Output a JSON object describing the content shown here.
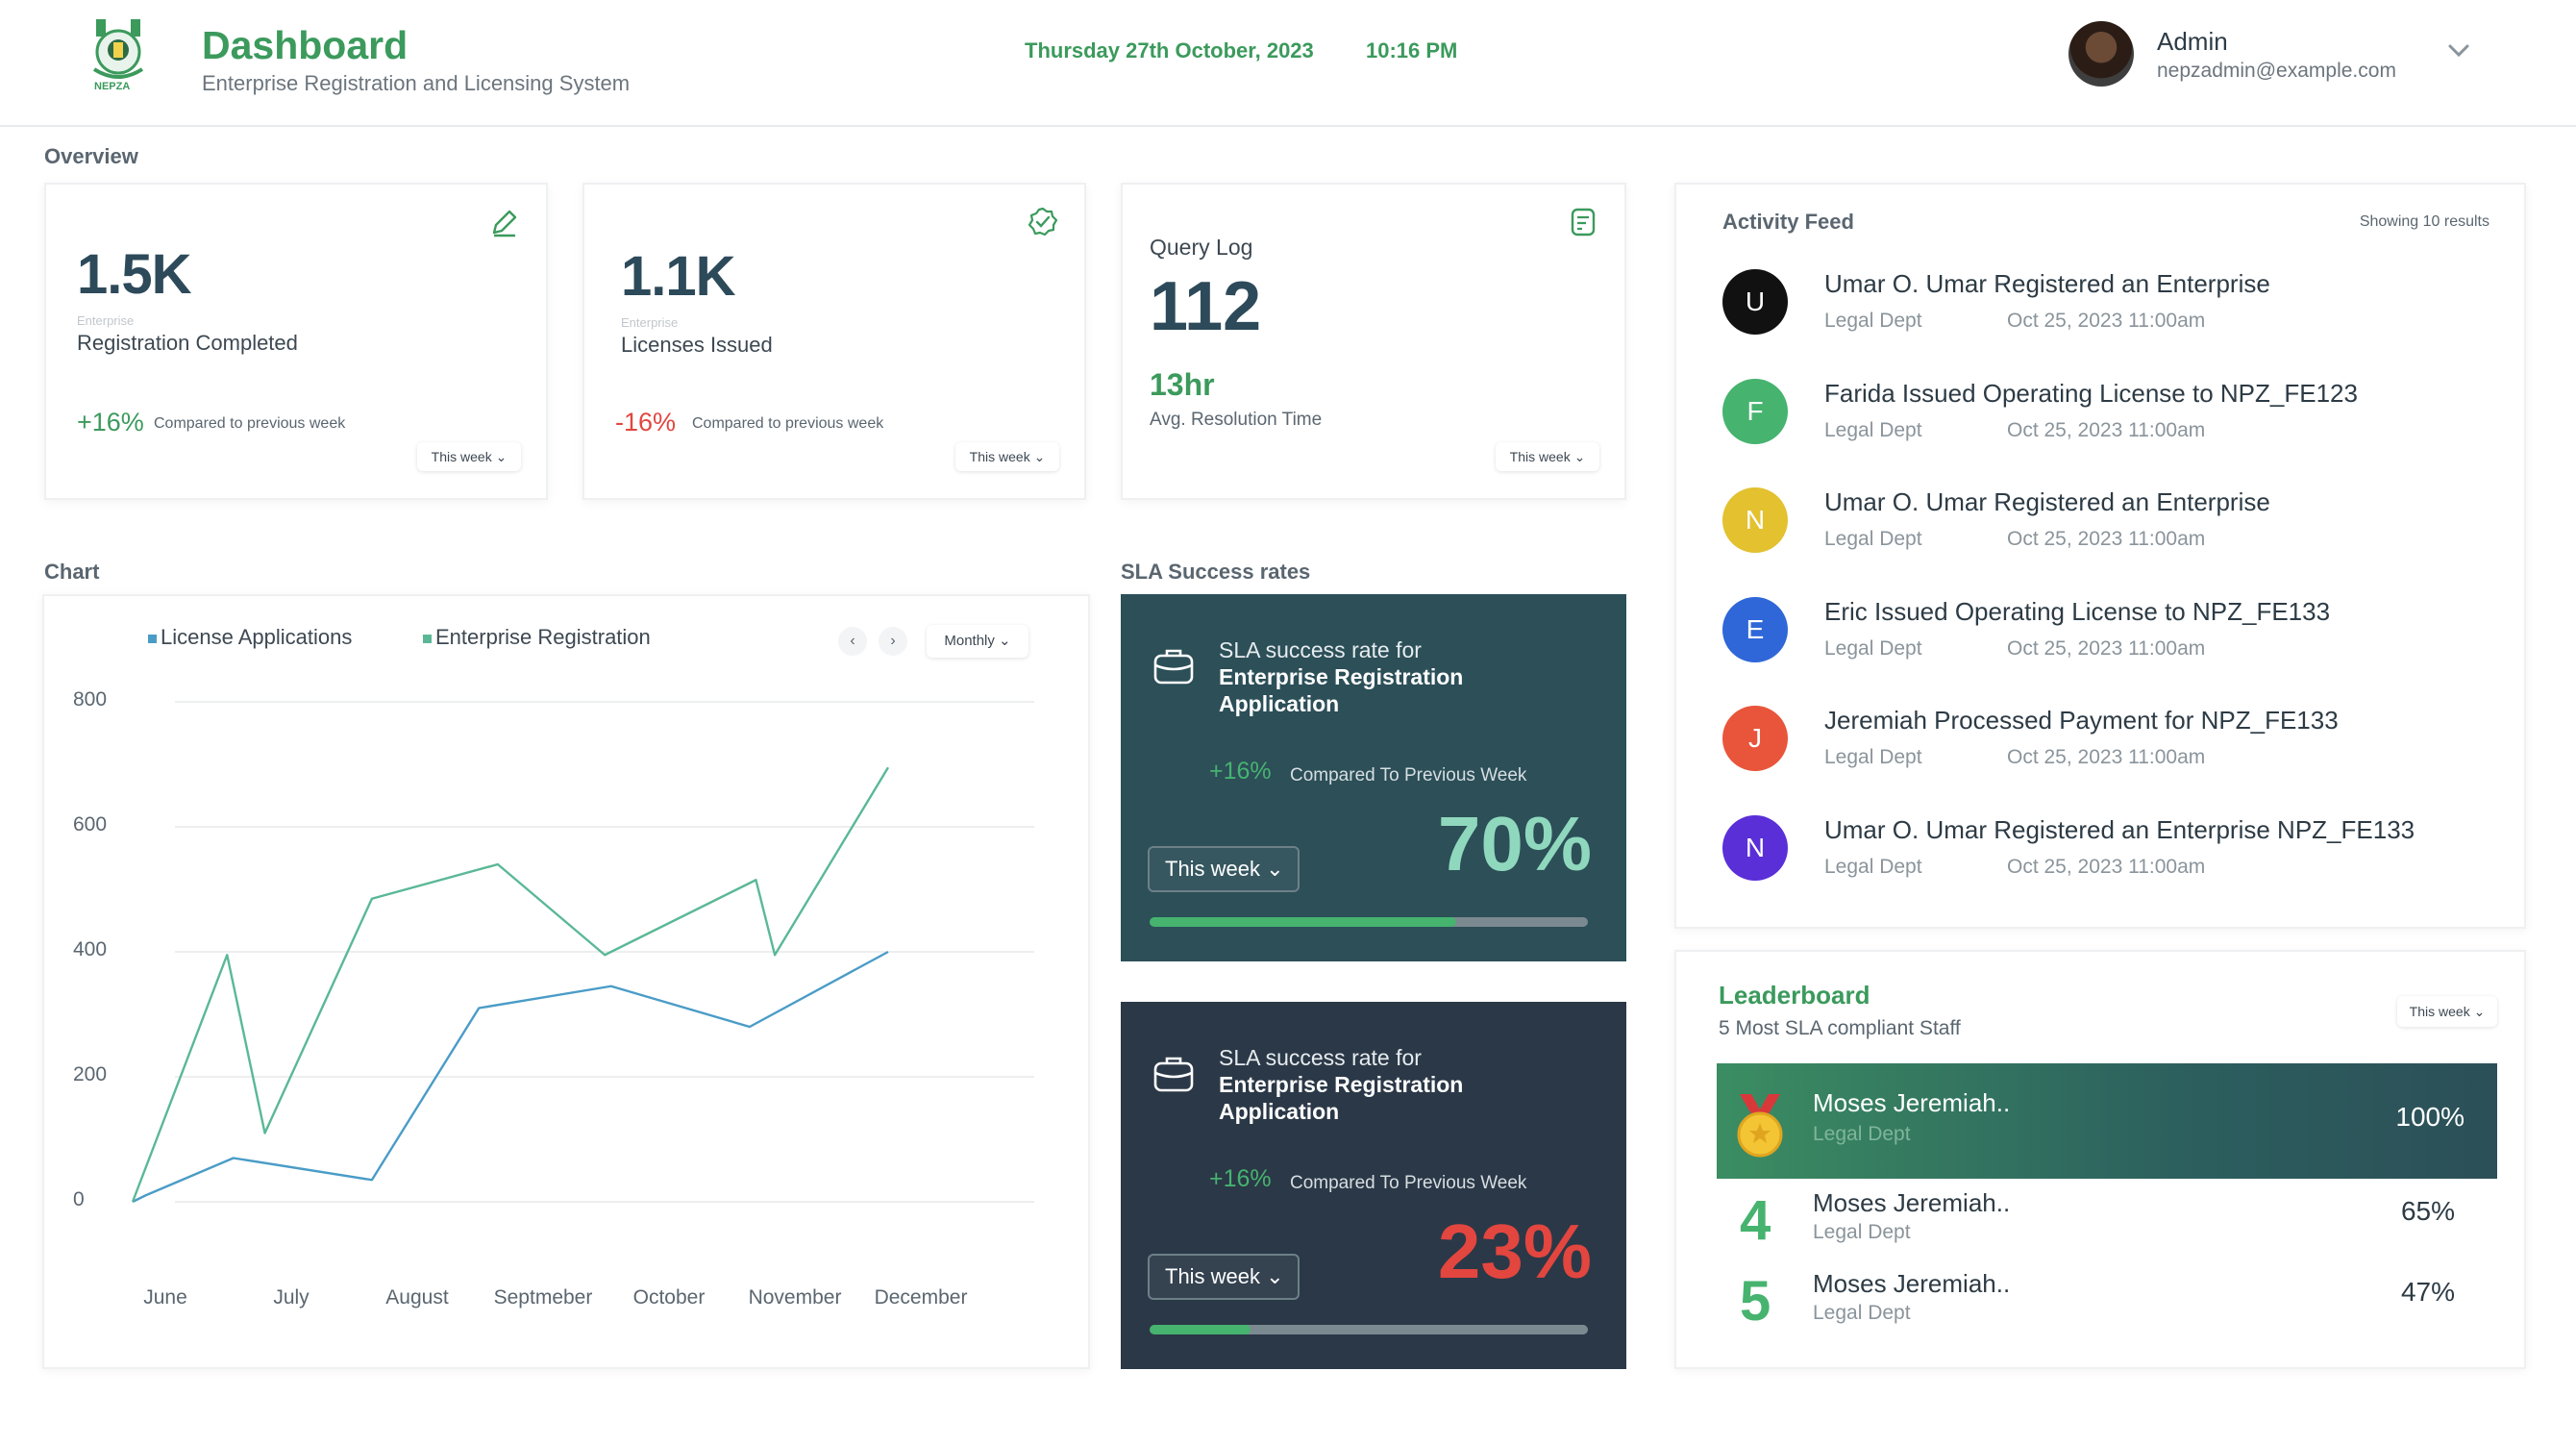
{
  "header": {
    "logo_text": "NEPZA",
    "title": "Dashboard",
    "subtitle": "Enterprise Registration and Licensing System",
    "date": "Thursday 27th October, 2023",
    "time": "10:16 PM",
    "user_name": "Admin",
    "user_email": "nepzadmin@example.com"
  },
  "overview": {
    "label": "Overview",
    "cards": [
      {
        "value": "1.5K",
        "tiny": "Enterprise",
        "label": "Registration Completed",
        "pct": "+16%",
        "pct_color": "#3b9a5c",
        "compare": "Compared to previous week",
        "period": "This week",
        "icon": "edit-icon"
      },
      {
        "value": "1.1K",
        "tiny": "Enterprise",
        "label": "Licenses Issued",
        "pct": "-16%",
        "pct_color": "#e2463f",
        "compare": "Compared to previous week",
        "period": "This week",
        "icon": "verified-badge-icon"
      }
    ],
    "query": {
      "label": "Query Log",
      "value": "112",
      "resolution": "13hr",
      "resolution_label": "Avg. Resolution Time",
      "period": "This week",
      "icon": "document-icon"
    }
  },
  "chart_section": {
    "label": "Chart",
    "legend": [
      {
        "name": "License Applications",
        "color": "#4a9cc7"
      },
      {
        "name": "Enterprise Registration",
        "color": "#5ab896"
      }
    ],
    "prev": "‹",
    "next": "›",
    "period": "Monthly"
  },
  "chart_data": {
    "type": "line",
    "x": [
      "June",
      "July",
      "August",
      "Septmeber",
      "October",
      "November",
      "December"
    ],
    "ylim": [
      0,
      800
    ],
    "yticks": [
      0,
      200,
      400,
      600,
      800
    ],
    "grid": true,
    "series": [
      {
        "name": "License Applications",
        "color": "#4a9cc7",
        "points": [
          [
            0.0,
            0
          ],
          [
            0.1,
            10
          ],
          [
            0.8,
            70
          ],
          [
            1.9,
            35
          ],
          [
            2.75,
            310
          ],
          [
            3.8,
            345
          ],
          [
            4.9,
            280
          ],
          [
            6.0,
            400
          ]
        ]
      },
      {
        "name": "Enterprise Registration",
        "color": "#5ab896",
        "points": [
          [
            0.0,
            0
          ],
          [
            0.75,
            395
          ],
          [
            1.05,
            110
          ],
          [
            1.9,
            485
          ],
          [
            2.9,
            540
          ],
          [
            3.75,
            395
          ],
          [
            4.95,
            515
          ],
          [
            5.1,
            395
          ],
          [
            6.0,
            695
          ]
        ]
      }
    ]
  },
  "sla": {
    "label": "SLA Success rates",
    "cards": [
      {
        "line1": "SLA success rate for",
        "line2": "Enterprise Registration",
        "line3": "Application",
        "pct": "+16%",
        "compare": "Compared To Previous Week",
        "period": "This week",
        "rate": "70%",
        "rate_value": 0.7,
        "rate_color": "#8fd8bd"
      },
      {
        "line1": "SLA success rate for",
        "line2": "Enterprise Registration",
        "line3": "Application",
        "pct": "+16%",
        "compare": "Compared To Previous Week",
        "period": "This week",
        "rate": "23%",
        "rate_value": 0.23,
        "rate_color": "#e2463f"
      }
    ]
  },
  "feed": {
    "title": "Activity Feed",
    "count": "Showing 10 results",
    "items": [
      {
        "initial": "U",
        "color": "#111111",
        "text": "Umar O. Umar  Registered an Enterprise",
        "dept": "Legal Dept",
        "time": "Oct 25, 2023  11:00am"
      },
      {
        "initial": "F",
        "color": "#46b36f",
        "text": "Farida Issued Operating License to  NPZ_FE123",
        "dept": "Legal Dept",
        "time": "Oct 25, 2023  11:00am"
      },
      {
        "initial": "N",
        "color": "#e3c12f",
        "text": "Umar O. Umar  Registered an Enterprise",
        "dept": "Legal Dept",
        "time": "Oct 25, 2023  11:00am"
      },
      {
        "initial": "E",
        "color": "#2f67d8",
        "text": "Eric Issued Operating License to   NPZ_FE133",
        "dept": "Legal Dept",
        "time": "Oct 25, 2023  11:00am"
      },
      {
        "initial": "J",
        "color": "#e9553b",
        "text": "Jeremiah Processed Payment for NPZ_FE133",
        "dept": "Legal Dept",
        "time": "Oct 25, 2023  11:00am"
      },
      {
        "initial": "N",
        "color": "#5a2fd8",
        "text": "Umar O. Umar  Registered an Enterprise NPZ_FE133",
        "dept": "Legal Dept",
        "time": "Oct 25, 2023  11:00am"
      }
    ]
  },
  "leaderboard": {
    "title": "Leaderboard",
    "subtitle": "5 Most SLA compliant Staff",
    "period": "This week",
    "top": {
      "name": "Moses Jeremiah..",
      "dept": "Legal Dept",
      "score": "100%"
    },
    "rows": [
      {
        "rank": "4",
        "name": "Moses Jeremiah..",
        "dept": "Legal Dept",
        "score": "65%"
      },
      {
        "rank": "5",
        "name": "Moses Jeremiah..",
        "dept": "Legal Dept",
        "score": "47%"
      }
    ]
  }
}
